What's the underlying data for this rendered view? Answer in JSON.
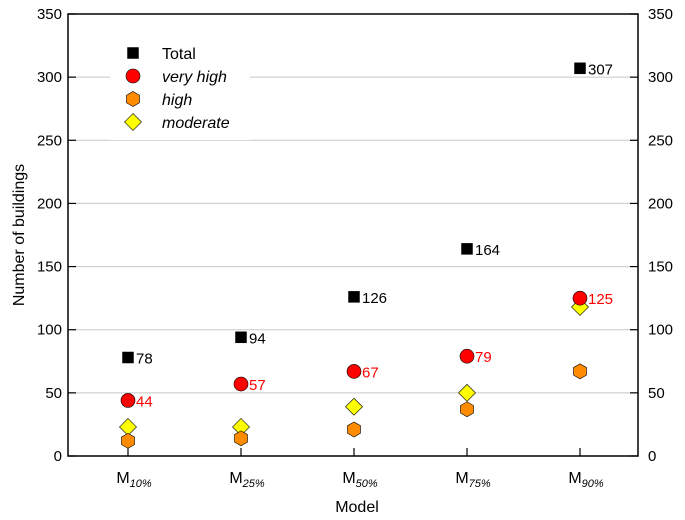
{
  "chart_data": {
    "type": "scatter",
    "xlabel": "Model",
    "ylabel": "Number of buildings",
    "ylim": [
      0,
      350
    ],
    "yticks": [
      0,
      50,
      100,
      150,
      200,
      250,
      300,
      350
    ],
    "grid": "horizontal",
    "legend_position": "top-left",
    "categories": [
      {
        "base": "M",
        "sub": "10%"
      },
      {
        "base": "M",
        "sub": "25%"
      },
      {
        "base": "M",
        "sub": "50%"
      },
      {
        "base": "M",
        "sub": "75%"
      },
      {
        "base": "M",
        "sub": "90%"
      }
    ],
    "series": [
      {
        "name": "Total",
        "marker": "square",
        "color": "#000000",
        "label_color": "#000000",
        "values": [
          78,
          94,
          126,
          164,
          307
        ],
        "labels": [
          "78",
          "94",
          "126",
          "164",
          "307"
        ]
      },
      {
        "name": "very high",
        "italic": true,
        "marker": "circle",
        "color": "#ff0000",
        "label_color": "#ff0000",
        "values": [
          44,
          57,
          67,
          79,
          125
        ],
        "labels": [
          "44",
          "57",
          "67",
          "79",
          "125"
        ]
      },
      {
        "name": "high",
        "italic": true,
        "marker": "hexagon",
        "color": "#ff8c00",
        "values": [
          12,
          14,
          21,
          37,
          67
        ],
        "labels": null
      },
      {
        "name": "moderate",
        "italic": true,
        "marker": "diamond",
        "color": "#ffff00",
        "values": [
          23,
          23,
          39,
          50,
          118
        ],
        "labels": null
      }
    ]
  }
}
